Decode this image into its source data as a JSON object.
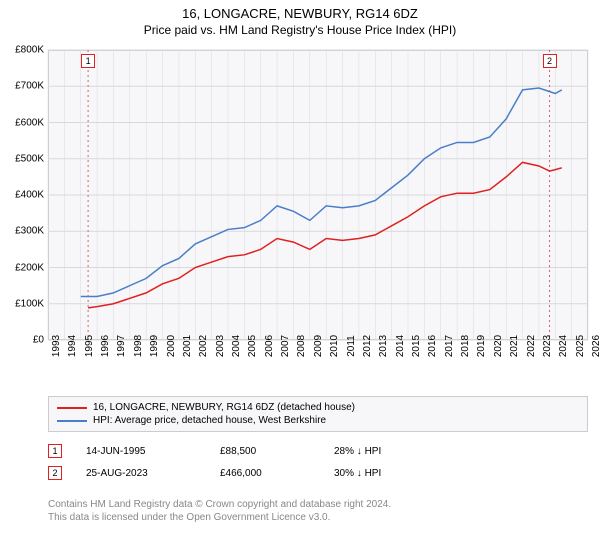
{
  "title": "16, LONGACRE, NEWBURY, RG14 6DZ",
  "subtitle": "Price paid vs. HM Land Registry's House Price Index (HPI)",
  "chart": {
    "type": "line",
    "background_color": "#f7f7f9",
    "border_color": "#cccccc",
    "grid_color": "#d9d9dd",
    "marker_line_color": "#cc6666",
    "title_fontsize": 13,
    "subtitle_fontsize": 12,
    "axis_fontsize": 10,
    "y": {
      "min": 0,
      "max": 800000,
      "ticks": [
        0,
        100000,
        200000,
        300000,
        400000,
        500000,
        600000,
        700000,
        800000
      ],
      "labels": [
        "£0",
        "£100K",
        "£200K",
        "£300K",
        "£400K",
        "£500K",
        "£600K",
        "£700K",
        "£800K"
      ]
    },
    "x": {
      "min": 1993,
      "max": 2026,
      "ticks": [
        1993,
        1994,
        1995,
        1996,
        1997,
        1998,
        1999,
        2000,
        2001,
        2002,
        2003,
        2004,
        2005,
        2006,
        2007,
        2008,
        2009,
        2010,
        2011,
        2012,
        2013,
        2014,
        2015,
        2016,
        2017,
        2018,
        2019,
        2020,
        2021,
        2022,
        2023,
        2024,
        2025,
        2026
      ],
      "labels": [
        "1993",
        "1994",
        "1995",
        "1996",
        "1997",
        "1998",
        "1999",
        "2000",
        "2001",
        "2002",
        "2003",
        "2004",
        "2005",
        "2006",
        "2007",
        "2008",
        "2009",
        "2010",
        "2011",
        "2012",
        "2013",
        "2014",
        "2015",
        "2016",
        "2017",
        "2018",
        "2019",
        "2020",
        "2021",
        "2022",
        "2023",
        "2024",
        "2025",
        "2026"
      ]
    },
    "series": [
      {
        "id": "address",
        "label": "16, LONGACRE, NEWBURY, RG14 6DZ (detached house)",
        "color": "#e02020",
        "width": 1.5,
        "data": [
          [
            1995.45,
            88500
          ],
          [
            1996,
            92000
          ],
          [
            1997,
            100000
          ],
          [
            1998,
            115000
          ],
          [
            1999,
            130000
          ],
          [
            2000,
            155000
          ],
          [
            2001,
            170000
          ],
          [
            2002,
            200000
          ],
          [
            2003,
            215000
          ],
          [
            2004,
            230000
          ],
          [
            2005,
            235000
          ],
          [
            2006,
            250000
          ],
          [
            2007,
            280000
          ],
          [
            2008,
            270000
          ],
          [
            2009,
            250000
          ],
          [
            2010,
            280000
          ],
          [
            2011,
            275000
          ],
          [
            2012,
            280000
          ],
          [
            2013,
            290000
          ],
          [
            2014,
            315000
          ],
          [
            2015,
            340000
          ],
          [
            2016,
            370000
          ],
          [
            2017,
            395000
          ],
          [
            2018,
            405000
          ],
          [
            2019,
            405000
          ],
          [
            2020,
            415000
          ],
          [
            2021,
            450000
          ],
          [
            2022,
            490000
          ],
          [
            2023,
            480000
          ],
          [
            2023.65,
            466000
          ],
          [
            2024,
            470000
          ],
          [
            2024.4,
            475000
          ]
        ]
      },
      {
        "id": "hpi",
        "label": "HPI: Average price, detached house, West Berkshire",
        "color": "#4a7ec8",
        "width": 1.5,
        "data": [
          [
            1995,
            120000
          ],
          [
            1996,
            120000
          ],
          [
            1997,
            130000
          ],
          [
            1998,
            150000
          ],
          [
            1999,
            170000
          ],
          [
            2000,
            205000
          ],
          [
            2001,
            225000
          ],
          [
            2002,
            265000
          ],
          [
            2003,
            285000
          ],
          [
            2004,
            305000
          ],
          [
            2005,
            310000
          ],
          [
            2006,
            330000
          ],
          [
            2007,
            370000
          ],
          [
            2008,
            355000
          ],
          [
            2009,
            330000
          ],
          [
            2010,
            370000
          ],
          [
            2011,
            365000
          ],
          [
            2012,
            370000
          ],
          [
            2013,
            385000
          ],
          [
            2014,
            420000
          ],
          [
            2015,
            455000
          ],
          [
            2016,
            500000
          ],
          [
            2017,
            530000
          ],
          [
            2018,
            545000
          ],
          [
            2019,
            545000
          ],
          [
            2020,
            560000
          ],
          [
            2021,
            610000
          ],
          [
            2022,
            690000
          ],
          [
            2023,
            695000
          ],
          [
            2024,
            680000
          ],
          [
            2024.4,
            690000
          ]
        ]
      }
    ],
    "markers": [
      {
        "n": "1",
        "x": 1995.45,
        "color": "#e02020"
      },
      {
        "n": "2",
        "x": 2023.65,
        "color": "#e02020"
      }
    ]
  },
  "legend": {
    "rows": [
      {
        "color": "#e02020",
        "label": "16, LONGACRE, NEWBURY, RG14 6DZ (detached house)"
      },
      {
        "color": "#4a7ec8",
        "label": "HPI: Average price, detached house, West Berkshire"
      }
    ]
  },
  "points": [
    {
      "n": "1",
      "color": "#e02020",
      "date": "14-JUN-1995",
      "price": "£88,500",
      "delta": "28% ↓ HPI"
    },
    {
      "n": "2",
      "color": "#e02020",
      "date": "25-AUG-2023",
      "price": "£466,000",
      "delta": "30% ↓ HPI"
    }
  ],
  "footer_line1": "Contains HM Land Registry data © Crown copyright and database right 2024.",
  "footer_line2": "This data is licensed under the Open Government Licence v3.0."
}
